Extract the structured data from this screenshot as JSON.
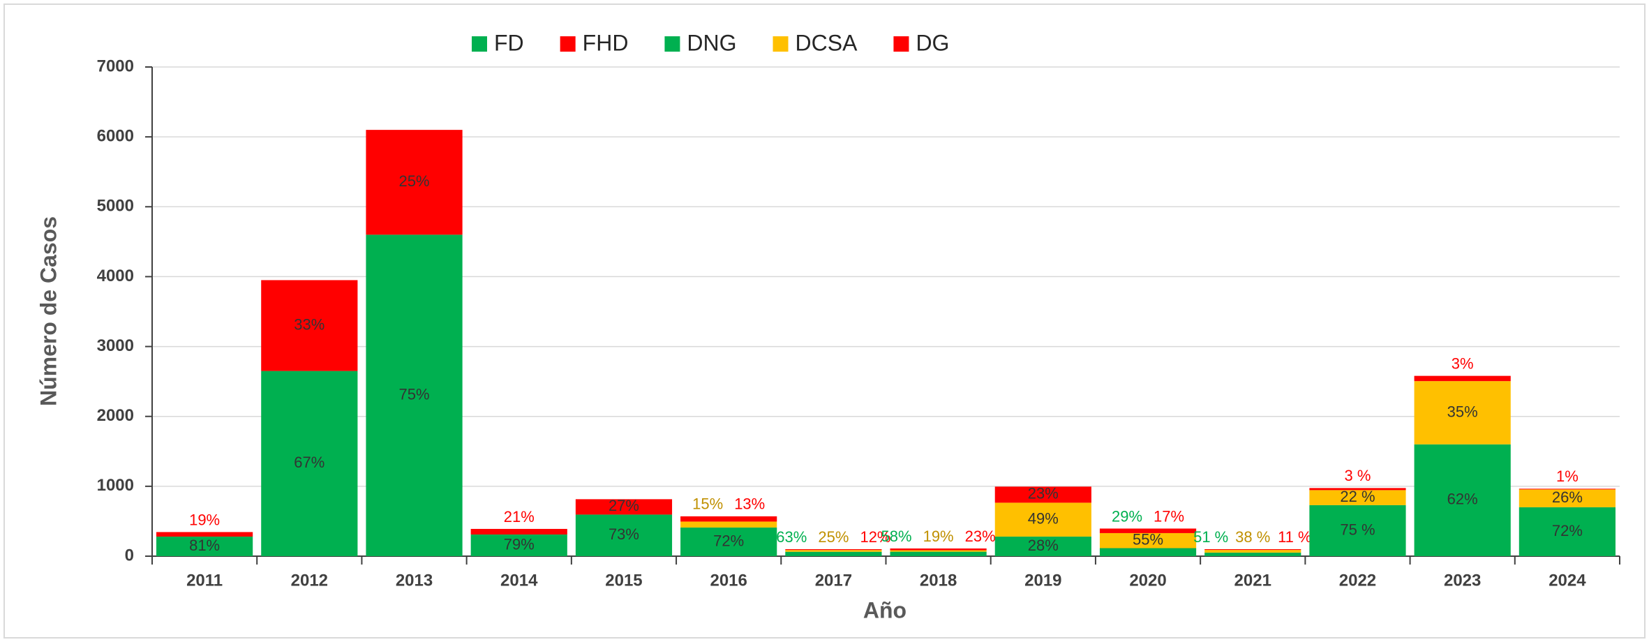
{
  "chart_data": {
    "type": "stacked_bar",
    "x_label": "Año",
    "y_label": "Número de Casos",
    "categories": [
      "2011",
      "2012",
      "2013",
      "2014",
      "2015",
      "2016",
      "2017",
      "2018",
      "2019",
      "2020",
      "2021",
      "2022",
      "2023",
      "2024"
    ],
    "ylim": [
      0,
      7000
    ],
    "yticks": [
      0,
      1000,
      2000,
      3000,
      4000,
      5000,
      6000,
      7000
    ],
    "grid": true,
    "legend": "top",
    "series": [
      {
        "name": "FD",
        "color": "#00b050",
        "values": [
          280,
          2650,
          4600,
          null,
          null,
          null,
          null,
          null,
          null,
          null,
          null,
          null,
          null,
          null
        ],
        "share_labels": [
          "81%",
          "67%",
          "75%",
          null,
          null,
          null,
          null,
          null,
          null,
          null,
          null,
          null,
          null,
          null
        ]
      },
      {
        "name": "FHD",
        "color": "#ff0000",
        "values": [
          65,
          1300,
          1500,
          null,
          null,
          null,
          null,
          null,
          null,
          null,
          null,
          null,
          null,
          null
        ],
        "share_labels": [
          "19%",
          "33%",
          "25%",
          null,
          null,
          null,
          null,
          null,
          null,
          null,
          null,
          null,
          null,
          null
        ]
      },
      {
        "name": "DNG",
        "color": "#00b050",
        "values": [
          null,
          null,
          null,
          310,
          595,
          410,
          63,
          64,
          280,
          115,
          51,
          730,
          1600,
          700
        ],
        "share_labels": [
          null,
          null,
          null,
          "79%",
          "73%",
          "72%",
          "63%",
          "58%",
          "28%",
          "29%",
          "51 %",
          "75 %",
          "62%",
          "72%"
        ]
      },
      {
        "name": "DCSA",
        "color": "#ffc000",
        "values": [
          null,
          null,
          null,
          null,
          null,
          85,
          25,
          21,
          485,
          215,
          38,
          215,
          905,
          255
        ],
        "share_labels": [
          null,
          null,
          null,
          null,
          null,
          "15%",
          "25%",
          "19%",
          "49%",
          "55%",
          "38 %",
          "22 %",
          "35%",
          "26%"
        ]
      },
      {
        "name": "DG",
        "color": "#ff0000",
        "values": [
          null,
          null,
          null,
          80,
          220,
          75,
          12,
          25,
          230,
          65,
          11,
          30,
          75,
          10
        ],
        "share_labels": [
          null,
          null,
          null,
          "21%",
          "27%",
          "13%",
          "12%",
          "23%",
          "23%",
          "17%",
          "11 %",
          "3 %",
          "3%",
          "1%"
        ]
      }
    ]
  }
}
